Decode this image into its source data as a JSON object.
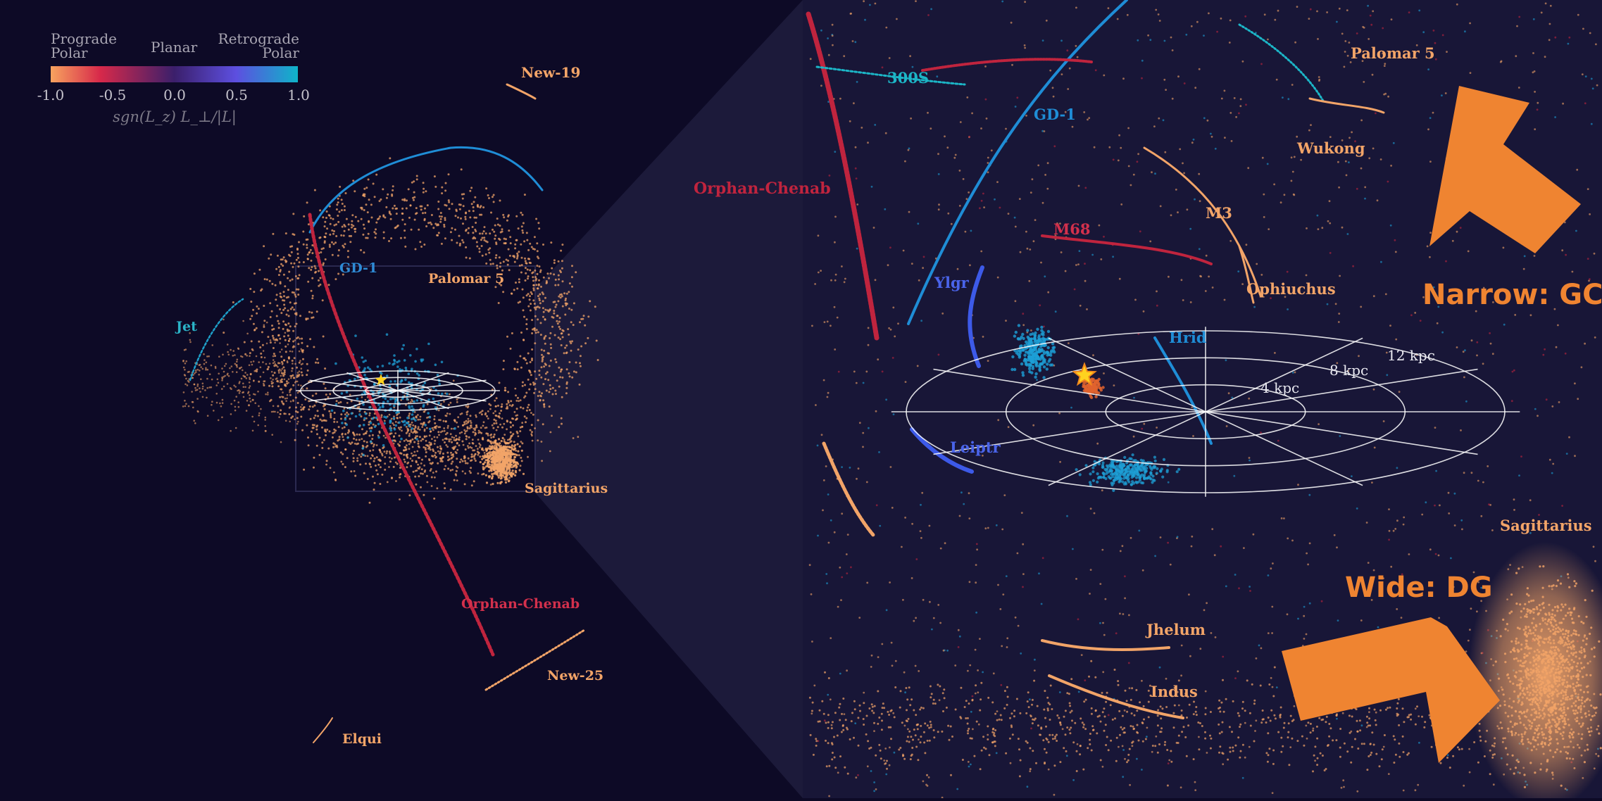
{
  "colors": {
    "background": "#0d0a26",
    "zoom_panel": "#1c1a3a",
    "prograde": "#f2a468",
    "planar": "#3a1f66",
    "retrograde": "#1d9fd6",
    "orphan_red": "#c0243e",
    "arrow_orange": "#ef8431",
    "sun_star": "#ffd21f",
    "grid": "#ffffff"
  },
  "colorbar": {
    "header_left": [
      "Prograde",
      "Polar"
    ],
    "header_mid": "Planar",
    "header_right": [
      "Retrograde",
      "Polar"
    ],
    "ticks": [
      "-1.0",
      "-0.5",
      "0.0",
      "0.5",
      "1.0"
    ],
    "axis_label": "sgn(L_z) L_⊥/|L|"
  },
  "overview_labels": {
    "new19": "New-19",
    "gd1": "GD-1",
    "palomar5": "Palomar 5",
    "jet": "Jet",
    "sagittarius": "Sagittarius",
    "orphan_chenab": "Orphan-Chenab",
    "new25": "New-25",
    "elqui": "Elqui"
  },
  "zoom_labels": {
    "s300": "300S",
    "gd1": "GD-1",
    "palomar5": "Palomar 5",
    "wukong": "Wukong",
    "orphan_chenab": "Orphan-Chenab",
    "m3": "M3",
    "m68": "M68",
    "ylgr": "Ylgr",
    "ophiuchus": "Ophiuchus",
    "hrid": "Hrid",
    "leiptr": "Leiptr",
    "sagittarius": "Sagittarius",
    "jhelum": "Jhelum",
    "indus": "Indus"
  },
  "grid_labels": [
    "4 kpc",
    "8 kpc",
    "12 kpc"
  ],
  "callouts": {
    "narrow": "Narrow: GC",
    "wide": "Wide: DG"
  }
}
